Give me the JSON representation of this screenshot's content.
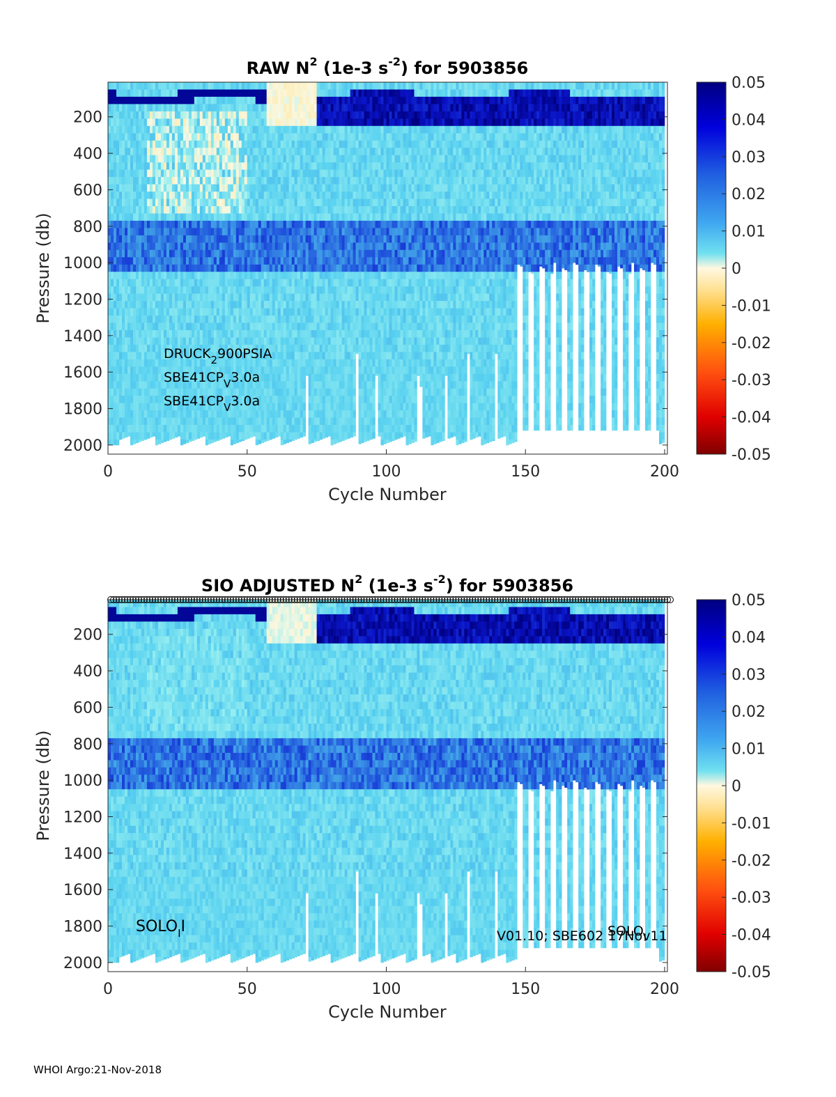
{
  "chart_data": [
    {
      "type": "heatmap",
      "title_parts": {
        "a": "RAW N",
        "sup1": "2",
        "b": " (1e-3 s",
        "sup2": "-2",
        "c": ") for 5903856"
      },
      "xlabel": "Cycle Number",
      "ylabel": "Pressure (db)",
      "xlim": [
        0,
        201
      ],
      "ylim": [
        2050,
        10
      ],
      "xticks": [
        0,
        50,
        100,
        150,
        200
      ],
      "yticks": [
        200,
        400,
        600,
        800,
        1000,
        1200,
        1400,
        1600,
        1800,
        2000
      ],
      "colorbar": {
        "ticks": [
          "0.05",
          "0.04",
          "0.03",
          "0.02",
          "0.01",
          "0",
          "-0.01",
          "-0.02",
          "-0.03",
          "-0.04",
          "-0.05"
        ],
        "range": [
          -0.05,
          0.05
        ]
      },
      "annotations": [
        {
          "text": "DRUCK",
          "sub": "2",
          "rest": "900PSIA"
        },
        {
          "text": "SBE41CP",
          "sub": "V",
          "rest": "3.0a"
        },
        {
          "text": "SBE41CP",
          "sub": "V",
          "rest": "3.0a"
        }
      ]
    },
    {
      "type": "heatmap",
      "title_parts": {
        "a": "SIO  ADJUSTED N",
        "sup1": "2",
        "b": " (1e-3 s",
        "sup2": "-2",
        "c": ") for 5903856"
      },
      "xlabel": "Cycle Number",
      "ylabel": "Pressure (db)",
      "xlim": [
        0,
        201
      ],
      "ylim": [
        2050,
        10
      ],
      "xticks": [
        0,
        50,
        100,
        150,
        200
      ],
      "yticks": [
        200,
        400,
        600,
        800,
        1000,
        1200,
        1400,
        1600,
        1800,
        2000
      ],
      "colorbar": {
        "ticks": [
          "0.05",
          "0.04",
          "0.03",
          "0.02",
          "0.01",
          "0",
          "-0.01",
          "-0.02",
          "-0.03",
          "-0.04",
          "-0.05"
        ],
        "range": [
          -0.05,
          0.05
        ]
      },
      "annotations": [
        {
          "text": "SOLO",
          "sub": "I",
          "rest": "I"
        },
        {
          "text": "SOLO",
          "sub": "I",
          "rest": ""
        },
        {
          "text": "V01.10; SBE602 17Nov11",
          "sub": "",
          "rest": ""
        }
      ]
    }
  ],
  "footer": "WHOI Argo:21-Nov-2018"
}
